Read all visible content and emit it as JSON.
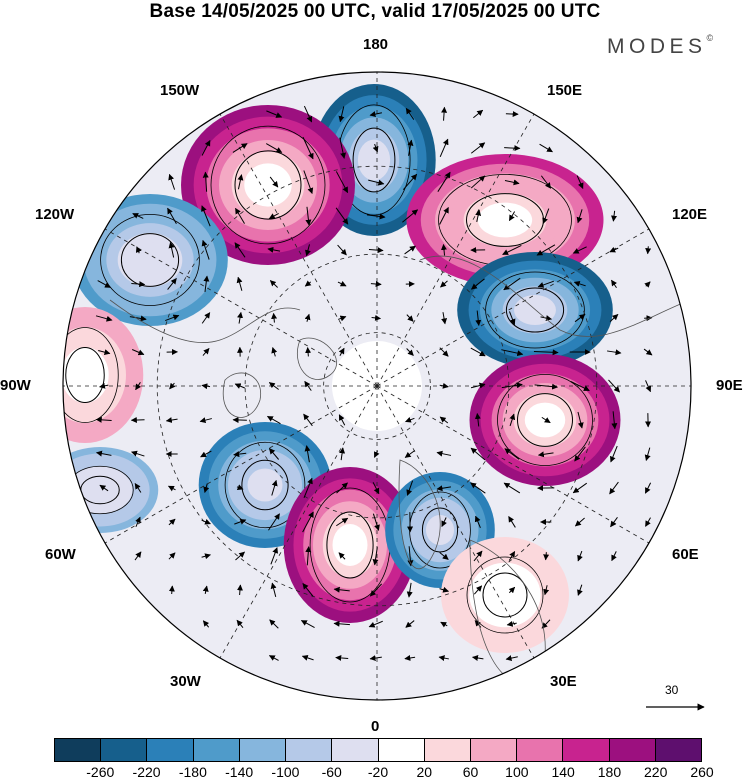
{
  "title": "Base 14/05/2025 00 UTC, valid 17/05/2025 00 UTC",
  "brand": "MODES",
  "brand_mark": "©",
  "meridian_labels": {
    "m180": "180",
    "m150e": "150E",
    "m120e": "120E",
    "m90e": "90E",
    "m60e": "60E",
    "m30e": "30E",
    "m0": "0",
    "m30w": "30W",
    "m60w": "60W",
    "m90w": "90W",
    "m120w": "120W",
    "m150w": "150W"
  },
  "vector_scale_label": "30",
  "colorbar": {
    "ticks": [
      "-260",
      "-220",
      "-180",
      "-140",
      "-100",
      "-60",
      "-20",
      "20",
      "60",
      "100",
      "140",
      "180",
      "220",
      "260"
    ],
    "colors": [
      "#0f3d5c",
      "#165f8c",
      "#2b80b8",
      "#4f9bca",
      "#86b6dd",
      "#b5c9e8",
      "#dedff0",
      "#ffffff",
      "#fbd8dc",
      "#f4a9c4",
      "#e873ad",
      "#c8238f",
      "#9c107f",
      "#5e0f6e"
    ]
  },
  "anomalies": [
    {
      "name": "low-180",
      "sign": -1,
      "strength": 1.0
    },
    {
      "name": "high-160w",
      "sign": 1,
      "strength": 0.95
    },
    {
      "name": "high-140e",
      "sign": 1,
      "strength": 0.85
    },
    {
      "name": "low-100e",
      "sign": -1,
      "strength": 0.95
    },
    {
      "name": "high-75e",
      "sign": 1,
      "strength": 1.0
    },
    {
      "name": "low-125w",
      "sign": -1,
      "strength": 0.65
    },
    {
      "name": "high-95w",
      "sign": 1,
      "strength": 0.5
    },
    {
      "name": "low-40w",
      "sign": -1,
      "strength": 0.8
    },
    {
      "name": "high-10w",
      "sign": 1,
      "strength": 1.0
    },
    {
      "name": "low-20e",
      "sign": -1,
      "strength": 0.75
    },
    {
      "name": "low-65w",
      "sign": -1,
      "strength": 0.45
    },
    {
      "name": "high-35e",
      "sign": 1,
      "strength": 0.4
    }
  ]
}
